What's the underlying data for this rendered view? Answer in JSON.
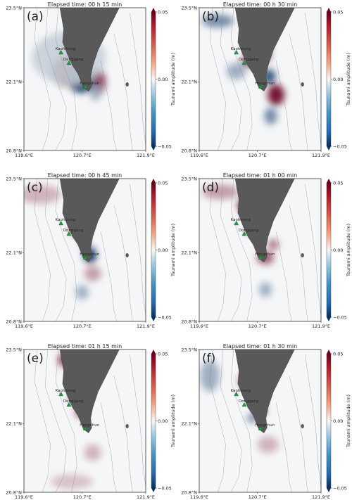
{
  "chart_data": [
    {
      "type": "heatmap",
      "panel_label": "(a)",
      "title": "Elapsed time:  00 h 15 min",
      "x_ticks": [
        "119.6°E",
        "120.7°E",
        "121.9°E"
      ],
      "y_ticks": [
        "23.5°N",
        "22.1°N",
        "20.8°N"
      ],
      "stations": [
        "Kaohsiung",
        "Donggang",
        "Hengchun"
      ],
      "colorbar": {
        "label": "Tsunami amplitude (m)",
        "ticks": [
          "0.05",
          "0.00",
          "−0.05"
        ],
        "range": [
          -0.05,
          0.05
        ]
      },
      "features": [
        {
          "x": 120.35,
          "y": 22.3,
          "rx": 0.22,
          "ry": 0.28,
          "value": 0.05
        },
        {
          "x": 120.7,
          "y": 22.15,
          "rx": 0.28,
          "ry": 0.26,
          "value": -0.05
        },
        {
          "x": 121.02,
          "y": 22.1,
          "rx": 0.12,
          "ry": 0.24,
          "value": 0.04
        },
        {
          "x": 120.95,
          "y": 21.9,
          "rx": 0.1,
          "ry": 0.16,
          "value": -0.02
        },
        {
          "x": 120.45,
          "y": 22.55,
          "rx": 0.7,
          "ry": 0.5,
          "value": -0.01
        }
      ]
    },
    {
      "type": "heatmap",
      "panel_label": "(b)",
      "title": "Elapsed time:  00 h 30 min",
      "x_ticks": [
        "119.6°E",
        "120.7°E",
        "121.9°E"
      ],
      "y_ticks": [
        "23.5°N",
        "22.1°N",
        "20.8°N"
      ],
      "stations": [
        "Kaohsiung",
        "Donggang",
        "Hengchun"
      ],
      "colorbar": {
        "label": "Tsunami amplitude (m)",
        "ticks": [
          "0.05",
          "0.00",
          "−0.05"
        ],
        "range": [
          -0.05,
          0.05
        ]
      },
      "features": [
        {
          "x": 120.55,
          "y": 22.5,
          "rx": 0.14,
          "ry": 0.12,
          "value": 0.045
        },
        {
          "x": 120.92,
          "y": 22.2,
          "rx": 0.12,
          "ry": 0.14,
          "value": -0.045
        },
        {
          "x": 121.05,
          "y": 21.85,
          "rx": 0.16,
          "ry": 0.2,
          "value": 0.05
        },
        {
          "x": 120.95,
          "y": 21.45,
          "rx": 0.12,
          "ry": 0.16,
          "value": -0.03
        },
        {
          "x": 120.3,
          "y": 22.3,
          "rx": 0.18,
          "ry": 0.16,
          "value": -0.02
        },
        {
          "x": 119.95,
          "y": 23.25,
          "rx": 0.3,
          "ry": 0.12,
          "value": -0.03
        },
        {
          "x": 120.9,
          "y": 22.75,
          "rx": 0.05,
          "ry": 0.3,
          "value": 0.04
        }
      ]
    },
    {
      "type": "heatmap",
      "panel_label": "(c)",
      "title": "Elapsed time:  00 h 45 min",
      "x_ticks": [
        "119.6°E",
        "120.7°E",
        "121.9°E"
      ],
      "y_ticks": [
        "23.5°N",
        "22.1°N",
        "20.8°N"
      ],
      "stations": [
        "Kaohsiung",
        "Donggang",
        "Hengchun"
      ],
      "colorbar": {
        "label": "Tsunami amplitude (m)",
        "ticks": [
          "0.05",
          "0.00",
          "−0.05"
        ],
        "range": [
          -0.05,
          0.05
        ]
      },
      "features": [
        {
          "x": 120.6,
          "y": 22.55,
          "rx": 0.12,
          "ry": 0.12,
          "value": 0.05
        },
        {
          "x": 120.85,
          "y": 22.05,
          "rx": 0.12,
          "ry": 0.16,
          "value": -0.05
        },
        {
          "x": 120.75,
          "y": 22.3,
          "rx": 0.08,
          "ry": 0.08,
          "value": 0.035
        },
        {
          "x": 120.9,
          "y": 21.7,
          "rx": 0.16,
          "ry": 0.14,
          "value": 0.02
        },
        {
          "x": 120.7,
          "y": 21.35,
          "rx": 0.12,
          "ry": 0.14,
          "value": -0.02
        },
        {
          "x": 119.9,
          "y": 23.2,
          "rx": 0.4,
          "ry": 0.18,
          "value": 0.015
        }
      ]
    },
    {
      "type": "heatmap",
      "panel_label": "(d)",
      "title": "Elapsed time:  01 h 00 min",
      "x_ticks": [
        "119.6°E",
        "120.7°E",
        "121.9°E"
      ],
      "y_ticks": [
        "23.5°N",
        "22.1°N",
        "20.8°N"
      ],
      "stations": [
        "Kaohsiung",
        "Donggang",
        "Hengchun"
      ],
      "colorbar": {
        "label": "Tsunami amplitude (m)",
        "ticks": [
          "0.05",
          "0.00",
          "−0.05"
        ],
        "range": [
          -0.05,
          0.05
        ]
      },
      "features": [
        {
          "x": 120.45,
          "y": 23.0,
          "rx": 0.12,
          "ry": 0.14,
          "value": 0.05
        },
        {
          "x": 120.62,
          "y": 22.55,
          "rx": 0.12,
          "ry": 0.1,
          "value": -0.045
        },
        {
          "x": 120.85,
          "y": 22.0,
          "rx": 0.16,
          "ry": 0.12,
          "value": 0.035
        },
        {
          "x": 120.85,
          "y": 21.4,
          "rx": 0.12,
          "ry": 0.14,
          "value": -0.02
        },
        {
          "x": 120.0,
          "y": 23.25,
          "rx": 0.35,
          "ry": 0.14,
          "value": 0.02
        },
        {
          "x": 121.0,
          "y": 22.25,
          "rx": 0.1,
          "ry": 0.1,
          "value": 0.03
        }
      ]
    },
    {
      "type": "heatmap",
      "panel_label": "(e)",
      "title": "Elapsed time:  01 h 15 min",
      "x_ticks": [
        "119.6°E",
        "120.7°E",
        "121.9°E"
      ],
      "y_ticks": [
        "23.5°N",
        "22.1°N",
        "20.8°N"
      ],
      "stations": [
        "Kaohsiung",
        "Donggang",
        "Hengchun"
      ],
      "colorbar": {
        "label": "Tsunami amplitude (m)",
        "ticks": [
          "0.05",
          "0.00",
          "−0.05"
        ],
        "range": [
          -0.05,
          0.05
        ]
      },
      "features": [
        {
          "x": 120.35,
          "y": 23.3,
          "rx": 0.1,
          "ry": 0.12,
          "value": 0.045
        },
        {
          "x": 120.6,
          "y": 22.6,
          "rx": 0.14,
          "ry": 0.12,
          "value": -0.04
        },
        {
          "x": 120.65,
          "y": 22.3,
          "rx": 0.08,
          "ry": 0.08,
          "value": 0.04
        },
        {
          "x": 120.9,
          "y": 21.55,
          "rx": 0.16,
          "ry": 0.16,
          "value": 0.015
        },
        {
          "x": 120.5,
          "y": 21.0,
          "rx": 0.4,
          "ry": 0.14,
          "value": 0.012
        }
      ]
    },
    {
      "type": "heatmap",
      "panel_label": "(f)",
      "title": "Elapsed time:  01 h 30 min",
      "x_ticks": [
        "119.6°E",
        "120.7°E",
        "121.9°E"
      ],
      "y_ticks": [
        "23.5°N",
        "22.1°N",
        "20.8°N"
      ],
      "stations": [
        "Kaohsiung",
        "Donggang",
        "Hengchun"
      ],
      "colorbar": {
        "label": "Tsunami amplitude (m)",
        "ticks": [
          "0.05",
          "0.00",
          "−0.05"
        ],
        "range": [
          -0.05,
          0.05
        ]
      },
      "features": [
        {
          "x": 120.45,
          "y": 22.9,
          "rx": 0.1,
          "ry": 0.1,
          "value": 0.04
        },
        {
          "x": 120.75,
          "y": 22.35,
          "rx": 0.12,
          "ry": 0.1,
          "value": 0.035
        },
        {
          "x": 120.6,
          "y": 22.2,
          "rx": 0.1,
          "ry": 0.08,
          "value": -0.03
        },
        {
          "x": 120.9,
          "y": 21.7,
          "rx": 0.2,
          "ry": 0.16,
          "value": 0.015
        },
        {
          "x": 119.8,
          "y": 23.0,
          "rx": 0.18,
          "ry": 0.3,
          "value": -0.02
        }
      ]
    }
  ]
}
